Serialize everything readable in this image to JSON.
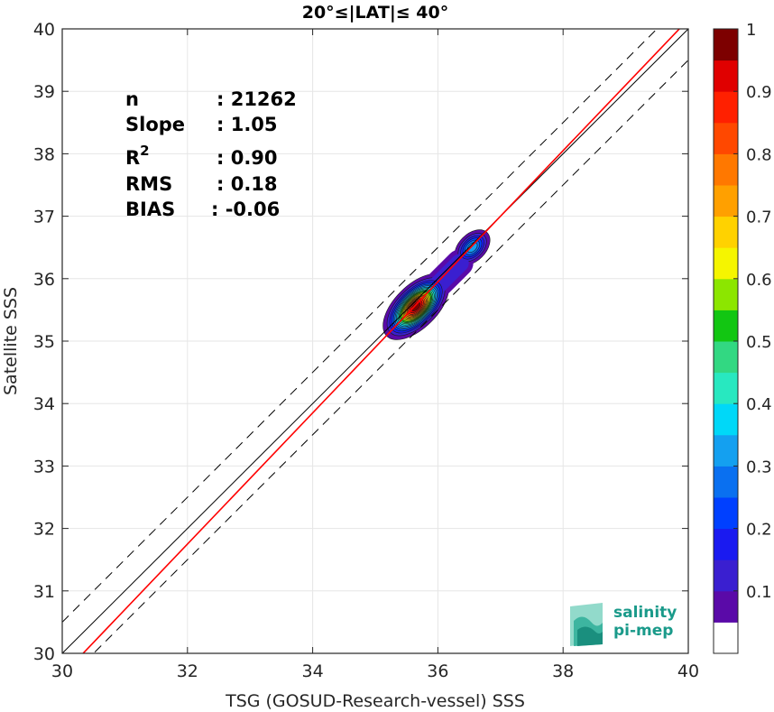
{
  "chart_data": {
    "type": "heatmap",
    "title": "20°≤|LAT|≤ 40°",
    "xlabel": "TSG (GOSUD-Research-vessel) SSS",
    "ylabel": "Satellite SSS",
    "xlim": [
      30,
      40
    ],
    "ylim": [
      30,
      40
    ],
    "xticks": [
      30,
      32,
      34,
      36,
      38,
      40
    ],
    "yticks": [
      30,
      31,
      32,
      33,
      34,
      35,
      36,
      37,
      38,
      39,
      40
    ],
    "grid": true,
    "stats": [
      {
        "label": "n",
        "sup": "",
        "value": ": 21262"
      },
      {
        "label": "Slope",
        "sup": "",
        "value": ": 1.05"
      },
      {
        "label": "R",
        "sup": "2",
        "value": ": 0.90"
      },
      {
        "label": "RMS",
        "sup": "",
        "value": ": 0.18"
      },
      {
        "label": "BIAS",
        "sup": "",
        "value": ": -0.06"
      }
    ],
    "lines": {
      "identity": {
        "slope": 1,
        "intercept": 0,
        "color": "#000000"
      },
      "dashed_offset": 0.5,
      "fit": {
        "slope": 1.05,
        "intercept": -1.85,
        "color": "#ff0000"
      }
    },
    "density_peaks": [
      {
        "x": 35.65,
        "y": 35.55,
        "peak": 1.0
      },
      {
        "x": 36.55,
        "y": 36.5,
        "peak": 0.35
      }
    ],
    "colorbar": {
      "min": 0,
      "max": 1,
      "ticks": [
        0.1,
        0.2,
        0.3,
        0.4,
        0.5,
        0.6,
        0.7,
        0.8,
        0.9,
        1
      ],
      "tick_labels": [
        "0.1",
        "0.2",
        "0.3",
        "0.4",
        "0.5",
        "0.6",
        "0.7",
        "0.8",
        "0.9",
        "1"
      ],
      "colors": [
        "#ffffff",
        "#5a0aa8",
        "#3a1fd0",
        "#1a1af0",
        "#0040ff",
        "#0a70f0",
        "#14a0f0",
        "#00d8f8",
        "#28e8c0",
        "#32d882",
        "#12c612",
        "#8ce600",
        "#f5f500",
        "#ffd200",
        "#ffa000",
        "#ff7800",
        "#ff4800",
        "#ff2000",
        "#e00000",
        "#7d0000"
      ]
    }
  },
  "logo": {
    "line1": "salinity",
    "line2": "pi-mep"
  }
}
